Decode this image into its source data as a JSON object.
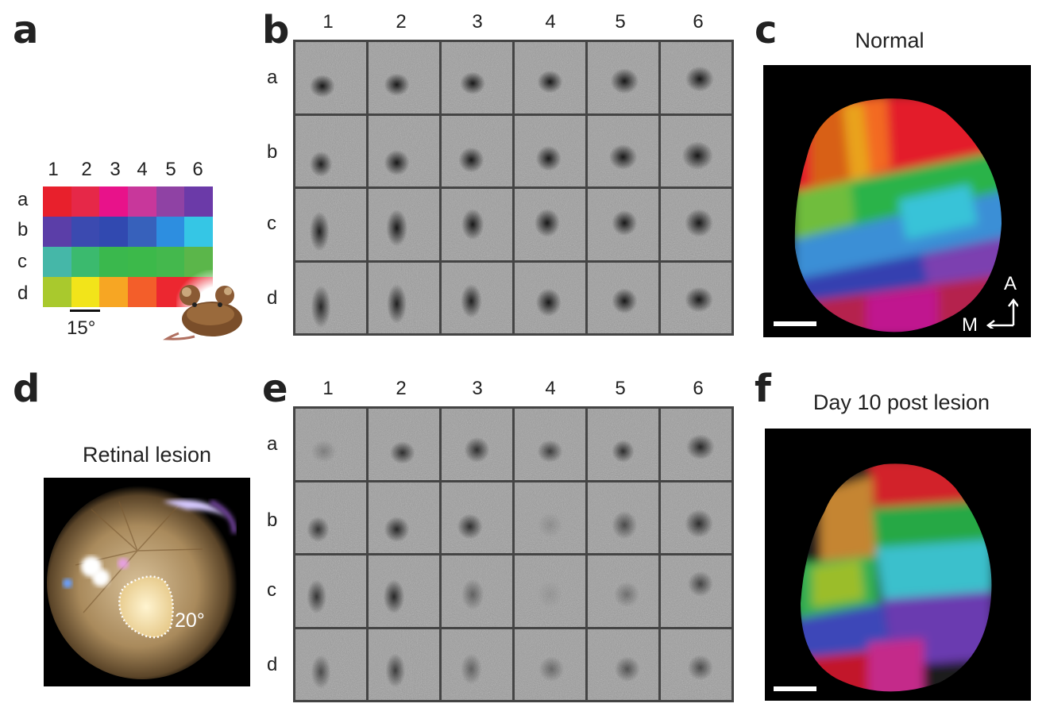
{
  "panels": {
    "a": {
      "letter": "a",
      "col_labels": [
        "1",
        "2",
        "3",
        "4",
        "5",
        "6"
      ],
      "row_labels": [
        "a",
        "b",
        "c",
        "d"
      ],
      "scale_label": "15°",
      "colors": [
        [
          "#e8202c",
          "#e62848",
          "#e8128a",
          "#c8379b",
          "#8f42a4",
          "#6b3aa8"
        ],
        [
          "#5b3ea8",
          "#3b4ab0",
          "#3149b0",
          "#3761bb",
          "#2d8ee0",
          "#35c6e5"
        ],
        [
          "#45b7a8",
          "#3bba6e",
          "#3ab84d",
          "#3cb94a",
          "#44b84d",
          "#5bb64a"
        ],
        [
          "#a9c92d",
          "#f2e41a",
          "#f7a623",
          "#f35e2a",
          "#ec2730",
          "#ec2730"
        ]
      ]
    },
    "b": {
      "letter": "b",
      "col_labels": [
        "1",
        "2",
        "3",
        "4",
        "5",
        "6"
      ],
      "row_labels": [
        "a",
        "b",
        "c",
        "d"
      ]
    },
    "c": {
      "letter": "c",
      "title": "Normal",
      "axis_a": "A",
      "axis_m": "M"
    },
    "d": {
      "letter": "d",
      "title": "Retinal lesion",
      "lesion_label": "20°"
    },
    "e": {
      "letter": "e",
      "col_labels": [
        "1",
        "2",
        "3",
        "4",
        "5",
        "6"
      ],
      "row_labels": [
        "a",
        "b",
        "c",
        "d"
      ]
    },
    "f": {
      "letter": "f",
      "title": "Day 10 post lesion"
    }
  }
}
